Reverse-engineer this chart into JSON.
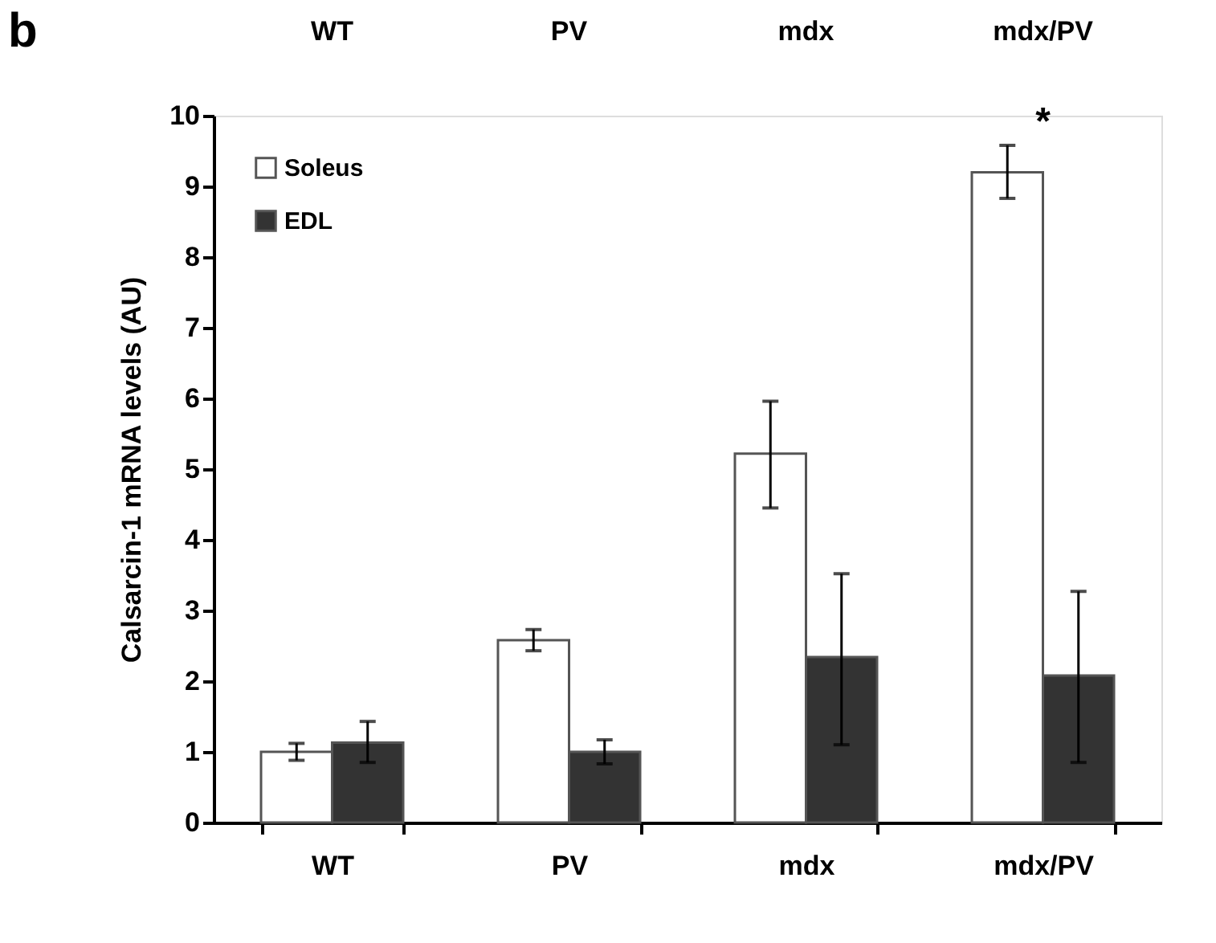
{
  "chart_data": {
    "type": "bar",
    "ylabel": "Calsarcin-1  mRNA levels (AU)",
    "categories": [
      "WT",
      "PV",
      "mdx",
      "mdx/PV"
    ],
    "series": [
      {
        "name": "Soleus",
        "color": "#ffffff",
        "values": [
          1.0,
          2.58,
          5.22,
          9.2
        ],
        "errors": [
          [
            0.88,
            1.12
          ],
          [
            2.43,
            2.73
          ],
          [
            4.45,
            5.96
          ],
          [
            8.83,
            9.58
          ]
        ]
      },
      {
        "name": "EDL",
        "color": "#333333",
        "values": [
          1.13,
          1.0,
          2.34,
          2.08
        ],
        "errors": [
          [
            0.85,
            1.43
          ],
          [
            0.83,
            1.17
          ],
          [
            1.1,
            3.52
          ],
          [
            0.85,
            3.27
          ]
        ]
      }
    ],
    "ylim": [
      0,
      10
    ],
    "yticks": [
      0,
      1,
      2,
      3,
      4,
      5,
      6,
      7,
      8,
      9,
      10
    ],
    "grid": false,
    "legend": "top left",
    "annotations": [
      "b",
      "WT",
      "PV",
      "mdx",
      "mdx/PV",
      "*"
    ]
  }
}
